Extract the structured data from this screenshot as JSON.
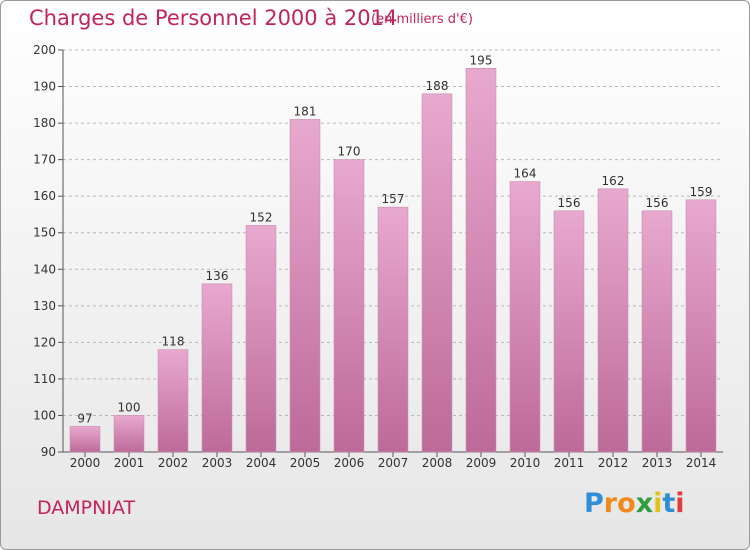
{
  "title": "Charges de Personnel 2000 à 2014",
  "unit_note": "(en milliers d'€)",
  "commune": "DAMPNIAT",
  "logo": {
    "letters": [
      "P",
      "r",
      "o",
      "x",
      "i",
      "t",
      "i"
    ],
    "colors": [
      "#2f8fd6",
      "#f08a1c",
      "#f08a1c",
      "#2e9e3e",
      "#e0c21a",
      "#2f8fd6",
      "#e03c3c"
    ]
  },
  "colors": {
    "bar_top": "#e8a9cf",
    "bar_bottom": "#bd6a98",
    "title": "#c2245c",
    "grid": "#b8b8b8"
  },
  "chart_data": {
    "type": "bar",
    "categories": [
      "2000",
      "2001",
      "2002",
      "2003",
      "2004",
      "2005",
      "2006",
      "2007",
      "2008",
      "2009",
      "2010",
      "2011",
      "2012",
      "2013",
      "2014"
    ],
    "values": [
      97,
      100,
      118,
      136,
      152,
      181,
      170,
      157,
      188,
      195,
      164,
      156,
      162,
      156,
      159
    ],
    "ylim": [
      90,
      200
    ],
    "yticks": [
      90,
      100,
      110,
      120,
      130,
      140,
      150,
      160,
      170,
      180,
      190,
      200
    ],
    "grid": true
  }
}
